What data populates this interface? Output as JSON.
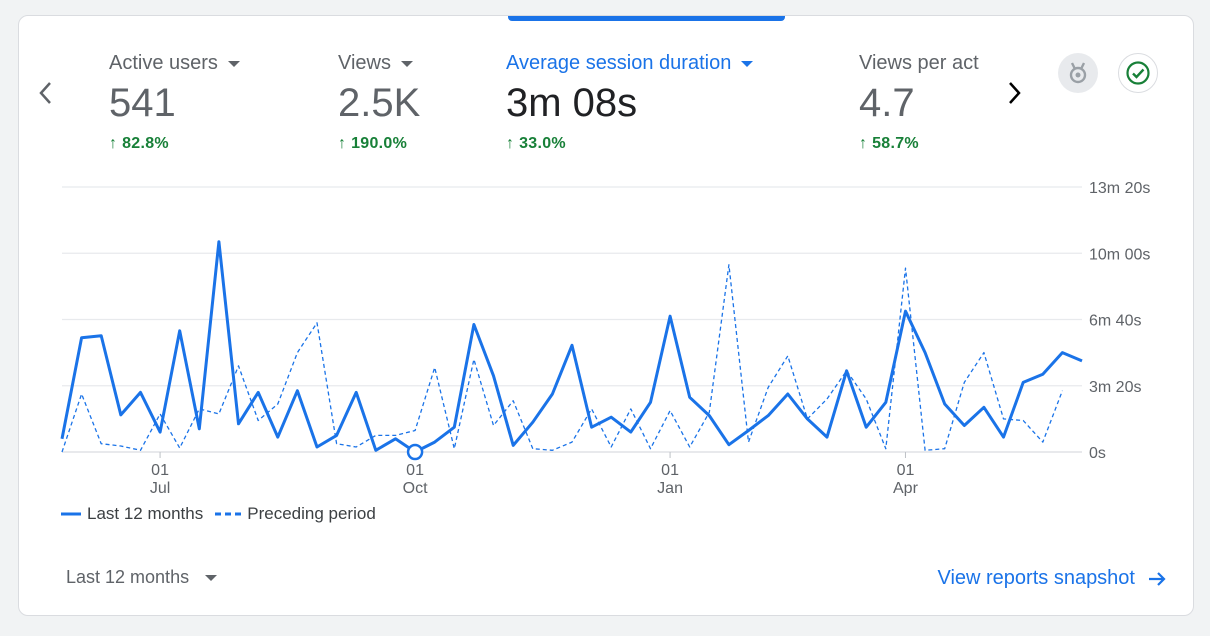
{
  "metrics": [
    {
      "label": "Active users",
      "value": "541",
      "change": "82.8%",
      "active": false
    },
    {
      "label": "Views",
      "value": "2.5K",
      "change": "190.0%",
      "active": false
    },
    {
      "label": "Average session duration",
      "value": "3m 08s",
      "change": "33.0%",
      "active": true
    },
    {
      "label": "Views per act",
      "value": "4.7",
      "change": "58.7%",
      "active": false
    }
  ],
  "icons": {
    "prev": "chevron-left-icon",
    "next": "chevron-right-icon",
    "medal": "medal-icon",
    "check": "check-circle-icon"
  },
  "colors": {
    "accent": "#1a73e8",
    "positive": "#188038"
  },
  "chart_data": {
    "type": "line",
    "y_tick_labels": [
      "0s",
      "3m 20s",
      "6m 40s",
      "10m 00s",
      "13m 20s"
    ],
    "y_ticks_seconds": [
      0,
      200,
      400,
      600,
      800
    ],
    "ylim": [
      0,
      800
    ],
    "x_tick_labels": [
      {
        "day": "01",
        "month": "Jul"
      },
      {
        "day": "01",
        "month": "Oct"
      },
      {
        "day": "01",
        "month": "Jan"
      },
      {
        "day": "01",
        "month": "Apr"
      }
    ],
    "x_tick_index": [
      5,
      18,
      31,
      43
    ],
    "grid": true,
    "legend_position": "bottom-left",
    "series": [
      {
        "name": "Last 12 months",
        "style": "solid",
        "values": [
          40,
          345,
          351,
          112,
          180,
          60,
          366,
          70,
          635,
          85,
          180,
          45,
          185,
          15,
          50,
          180,
          5,
          40,
          0,
          30,
          75,
          385,
          230,
          20,
          90,
          175,
          322,
          75,
          105,
          60,
          150,
          410,
          165,
          110,
          22,
          65,
          110,
          175,
          100,
          45,
          245,
          75,
          150,
          425,
          300,
          145,
          80,
          135,
          45,
          210,
          235,
          300,
          275
        ]
      },
      {
        "name": "Preceding period",
        "style": "dashed",
        "values": [
          0,
          175,
          25,
          18,
          5,
          115,
          12,
          130,
          115,
          260,
          95,
          145,
          300,
          390,
          25,
          15,
          50,
          50,
          65,
          255,
          10,
          280,
          80,
          155,
          10,
          5,
          30,
          130,
          15,
          130,
          10,
          125,
          15,
          120,
          565,
          30,
          195,
          290,
          100,
          160,
          245,
          160,
          10,
          555,
          5,
          10,
          210,
          300,
          100,
          95,
          30,
          185
        ]
      }
    ],
    "highlight_point": {
      "series": "Last 12 months",
      "index": 18
    }
  },
  "footer": {
    "range_label": "Last 12 months",
    "link_label": "View reports snapshot"
  }
}
